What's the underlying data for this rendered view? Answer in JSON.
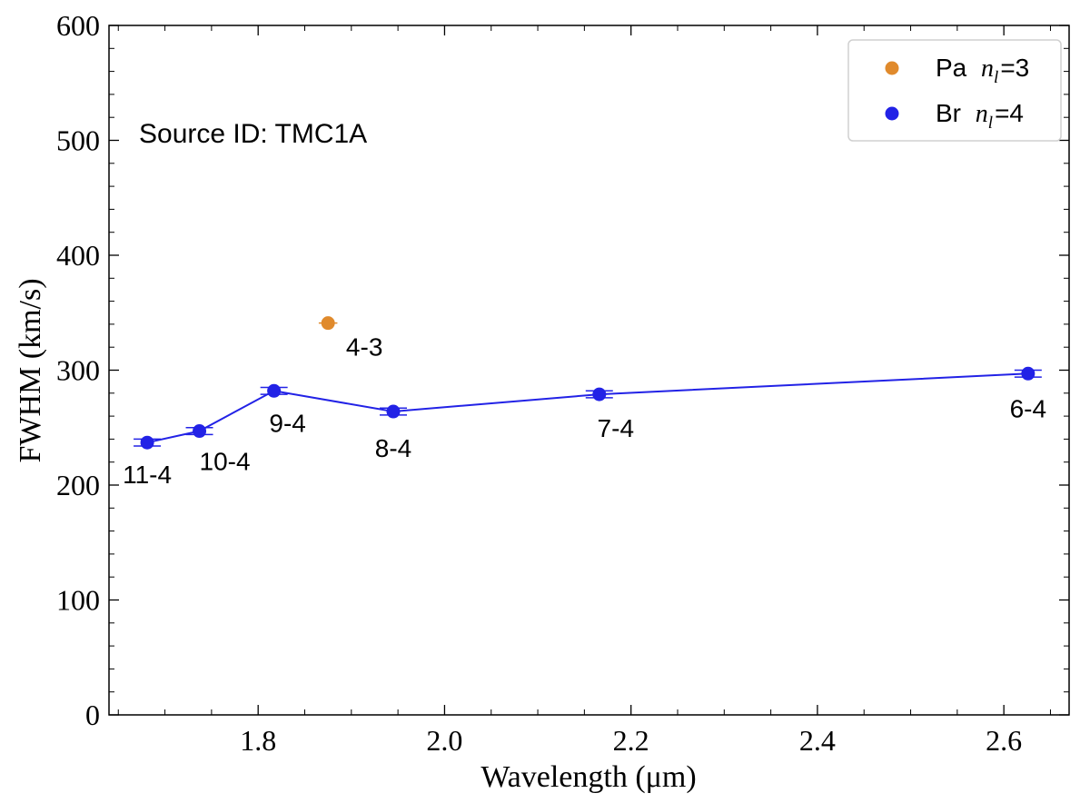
{
  "chart_data": {
    "type": "scatter",
    "annotation": "Source ID: TMC1A",
    "xlabel": "Wavelength (μm)",
    "ylabel": "FWHM (km/s)",
    "xlim": [
      1.64,
      2.67
    ],
    "ylim": [
      0,
      600
    ],
    "xticks": [
      1.8,
      2.0,
      2.2,
      2.4,
      2.6
    ],
    "xtick_labels": [
      "1.8",
      "2.0",
      "2.2",
      "2.4",
      "2.6"
    ],
    "yticks": [
      0,
      100,
      200,
      300,
      400,
      500,
      600
    ],
    "ytick_labels": [
      "0",
      "100",
      "200",
      "300",
      "400",
      "500",
      "600"
    ],
    "grid": false,
    "legend_position": "top-right",
    "series": [
      {
        "name": "Pa",
        "legend_prefix": "Pa",
        "legend_var": "n",
        "legend_sub": "l",
        "legend_eq": "=3",
        "color": "#e08a2c",
        "connected": false,
        "points": [
          {
            "x": 1.875,
            "y": 341,
            "xerr": 0.01,
            "label": "4-3"
          }
        ]
      },
      {
        "name": "Br",
        "legend_prefix": "Br",
        "legend_var": "n",
        "legend_sub": "l",
        "legend_eq": "=4",
        "color": "#2222e6",
        "connected": true,
        "points": [
          {
            "x": 1.681,
            "y": 237,
            "yerr": 3,
            "label": "11-4"
          },
          {
            "x": 1.737,
            "y": 247,
            "yerr": 3,
            "label": "10-4"
          },
          {
            "x": 1.817,
            "y": 282,
            "yerr": 3,
            "label": "9-4"
          },
          {
            "x": 1.945,
            "y": 264,
            "yerr": 3,
            "label": "8-4"
          },
          {
            "x": 2.166,
            "y": 279,
            "yerr": 3,
            "label": "7-4"
          },
          {
            "x": 2.626,
            "y": 297,
            "yerr": 3,
            "label": "6-4"
          }
        ]
      }
    ]
  }
}
